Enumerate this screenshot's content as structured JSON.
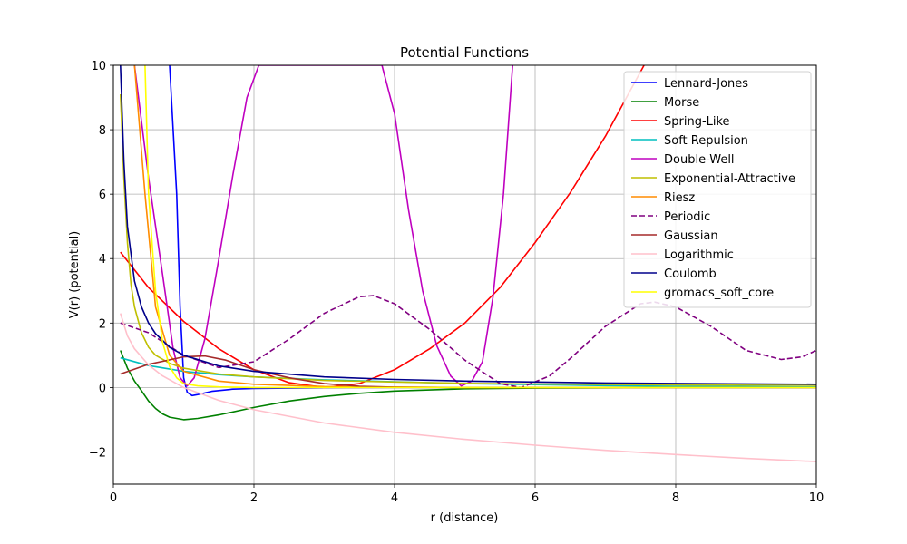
{
  "chart_data": {
    "type": "line",
    "title": "Potential Functions",
    "xlabel": "r (distance)",
    "ylabel": "V(r) (potential)",
    "xlim": [
      0,
      10
    ],
    "ylim": [
      -3,
      10
    ],
    "x_ticks": [
      0,
      2,
      4,
      6,
      8,
      10
    ],
    "y_ticks": [
      -2,
      0,
      2,
      4,
      6,
      8,
      10
    ],
    "x_tick_labels": [
      "0",
      "2",
      "4",
      "6",
      "8",
      "10"
    ],
    "y_tick_labels": [
      "−2",
      "0",
      "2",
      "4",
      "6",
      "8",
      "10"
    ],
    "grid": true,
    "legend_position": "top-right",
    "series": [
      {
        "name": "Lennard-Jones",
        "color": "#0000ff",
        "dash": false,
        "points": [
          [
            0.8,
            10
          ],
          [
            0.9,
            6
          ],
          [
            0.95,
            2.5
          ],
          [
            1.0,
            0.3
          ],
          [
            1.05,
            -0.15
          ],
          [
            1.12,
            -0.25
          ],
          [
            1.2,
            -0.22
          ],
          [
            1.4,
            -0.12
          ],
          [
            1.7,
            -0.05
          ],
          [
            2,
            -0.03
          ],
          [
            3,
            -0.01
          ],
          [
            4,
            0
          ],
          [
            10,
            0
          ]
        ]
      },
      {
        "name": "Morse",
        "color": "#008000",
        "dash": false,
        "points": [
          [
            0.1,
            1.15
          ],
          [
            0.2,
            0.6
          ],
          [
            0.3,
            0.2
          ],
          [
            0.4,
            -0.1
          ],
          [
            0.5,
            -0.42
          ],
          [
            0.6,
            -0.65
          ],
          [
            0.7,
            -0.82
          ],
          [
            0.8,
            -0.92
          ],
          [
            1.0,
            -1.0
          ],
          [
            1.2,
            -0.96
          ],
          [
            1.5,
            -0.85
          ],
          [
            2,
            -0.62
          ],
          [
            2.5,
            -0.42
          ],
          [
            3,
            -0.28
          ],
          [
            3.5,
            -0.18
          ],
          [
            4,
            -0.11
          ],
          [
            5,
            -0.04
          ],
          [
            6,
            -0.02
          ],
          [
            8,
            0
          ],
          [
            10,
            0
          ]
        ]
      },
      {
        "name": "Spring-Like",
        "color": "#ff0000",
        "dash": false,
        "points": [
          [
            0.1,
            4.2
          ],
          [
            0.5,
            3.1
          ],
          [
            1.0,
            2.05
          ],
          [
            1.5,
            1.2
          ],
          [
            2,
            0.55
          ],
          [
            2.5,
            0.15
          ],
          [
            3,
            0.0
          ],
          [
            3.5,
            0.12
          ],
          [
            4,
            0.55
          ],
          [
            4.5,
            1.2
          ],
          [
            5,
            2.0
          ],
          [
            5.5,
            3.1
          ],
          [
            6,
            4.5
          ],
          [
            6.5,
            6.05
          ],
          [
            7,
            7.8
          ],
          [
            7.35,
            9.2
          ],
          [
            7.55,
            10
          ]
        ]
      },
      {
        "name": "Soft Repulsion",
        "color": "#00bfbf",
        "dash": false,
        "points": [
          [
            0.1,
            0.92
          ],
          [
            0.5,
            0.68
          ],
          [
            1.0,
            0.5
          ],
          [
            1.5,
            0.4
          ],
          [
            2,
            0.33
          ],
          [
            3,
            0.24
          ],
          [
            4,
            0.18
          ],
          [
            5,
            0.12
          ],
          [
            6,
            0.09
          ],
          [
            7,
            0.06
          ],
          [
            8,
            0.04
          ],
          [
            10,
            0.02
          ]
        ]
      },
      {
        "name": "Double-Well",
        "color": "#bf00bf",
        "dash": false,
        "points": [
          [
            0.3,
            10
          ],
          [
            0.5,
            6.5
          ],
          [
            0.7,
            3.5
          ],
          [
            0.85,
            1.2
          ],
          [
            0.95,
            0.3
          ],
          [
            1.05,
            0.05
          ],
          [
            1.15,
            0.3
          ],
          [
            1.3,
            1.5
          ],
          [
            1.5,
            4
          ],
          [
            1.7,
            6.6
          ],
          [
            1.9,
            9
          ],
          [
            2.07,
            10
          ],
          [
            3.82,
            10
          ],
          [
            4.0,
            8.5
          ],
          [
            4.2,
            5.5
          ],
          [
            4.4,
            3.0
          ],
          [
            4.6,
            1.3
          ],
          [
            4.8,
            0.35
          ],
          [
            4.95,
            0.05
          ],
          [
            5.1,
            0.2
          ],
          [
            5.25,
            0.8
          ],
          [
            5.4,
            2.8
          ],
          [
            5.55,
            6
          ],
          [
            5.68,
            10
          ]
        ]
      },
      {
        "name": "Exponential-Attractive",
        "color": "#bfbf00",
        "dash": false,
        "points": [
          [
            0.1,
            9.1
          ],
          [
            0.15,
            6.5
          ],
          [
            0.2,
            4.5
          ],
          [
            0.25,
            3.2
          ],
          [
            0.3,
            2.5
          ],
          [
            0.4,
            1.7
          ],
          [
            0.5,
            1.25
          ],
          [
            0.6,
            1.0
          ],
          [
            0.8,
            0.75
          ],
          [
            1.0,
            0.6
          ],
          [
            1.5,
            0.42
          ],
          [
            2,
            0.33
          ],
          [
            3,
            0.22
          ],
          [
            4,
            0.17
          ],
          [
            5,
            0.13
          ],
          [
            6,
            0.11
          ],
          [
            8,
            0.08
          ],
          [
            10,
            0.07
          ]
        ]
      },
      {
        "name": "Riesz",
        "color": "#ff8c00",
        "dash": false,
        "points": [
          [
            0.3,
            10
          ],
          [
            0.45,
            6
          ],
          [
            0.6,
            2.5
          ],
          [
            0.8,
            1.0
          ],
          [
            1.0,
            0.5
          ],
          [
            1.5,
            0.2
          ],
          [
            2,
            0.1
          ],
          [
            3,
            0.03
          ],
          [
            5,
            0
          ],
          [
            10,
            0
          ]
        ]
      },
      {
        "name": "Periodic",
        "color": "#800080",
        "dash": true,
        "points": [
          [
            0.1,
            2.0
          ],
          [
            0.5,
            1.7
          ],
          [
            1.0,
            1.0
          ],
          [
            1.5,
            0.62
          ],
          [
            2,
            0.8
          ],
          [
            2.5,
            1.5
          ],
          [
            3,
            2.3
          ],
          [
            3.5,
            2.82
          ],
          [
            3.7,
            2.85
          ],
          [
            4,
            2.6
          ],
          [
            4.5,
            1.8
          ],
          [
            5,
            0.85
          ],
          [
            5.5,
            0.12
          ],
          [
            5.8,
            0.0
          ],
          [
            6.2,
            0.35
          ],
          [
            6.5,
            0.9
          ],
          [
            7,
            1.9
          ],
          [
            7.5,
            2.6
          ],
          [
            7.7,
            2.65
          ],
          [
            8,
            2.5
          ],
          [
            8.5,
            1.9
          ],
          [
            9,
            1.15
          ],
          [
            9.5,
            0.87
          ],
          [
            9.8,
            0.95
          ],
          [
            10,
            1.15
          ]
        ]
      },
      {
        "name": "Gaussian",
        "color": "#a52a2a",
        "dash": false,
        "points": [
          [
            0.1,
            0.42
          ],
          [
            0.5,
            0.72
          ],
          [
            1.0,
            0.95
          ],
          [
            1.3,
            0.98
          ],
          [
            1.6,
            0.85
          ],
          [
            2,
            0.55
          ],
          [
            2.5,
            0.3
          ],
          [
            3,
            0.12
          ],
          [
            3.5,
            0.04
          ],
          [
            4,
            0.01
          ],
          [
            5,
            0
          ],
          [
            10,
            0
          ]
        ]
      },
      {
        "name": "Logarithmic",
        "color": "#ffc0cb",
        "dash": false,
        "points": [
          [
            0.1,
            2.3
          ],
          [
            0.2,
            1.6
          ],
          [
            0.3,
            1.2
          ],
          [
            0.5,
            0.7
          ],
          [
            0.7,
            0.36
          ],
          [
            1.0,
            0.0
          ],
          [
            1.5,
            -0.4
          ],
          [
            2,
            -0.69
          ],
          [
            3,
            -1.1
          ],
          [
            4,
            -1.39
          ],
          [
            5,
            -1.61
          ],
          [
            6,
            -1.79
          ],
          [
            7,
            -1.95
          ],
          [
            8,
            -2.08
          ],
          [
            9,
            -2.2
          ],
          [
            10,
            -2.3
          ]
        ]
      },
      {
        "name": "Coulomb",
        "color": "#00008b",
        "dash": false,
        "points": [
          [
            0.1,
            10
          ],
          [
            0.15,
            7
          ],
          [
            0.2,
            5.0
          ],
          [
            0.3,
            3.3
          ],
          [
            0.4,
            2.5
          ],
          [
            0.5,
            2.0
          ],
          [
            0.6,
            1.67
          ],
          [
            0.8,
            1.25
          ],
          [
            1.0,
            1.0
          ],
          [
            1.5,
            0.67
          ],
          [
            2,
            0.5
          ],
          [
            3,
            0.33
          ],
          [
            4,
            0.25
          ],
          [
            5,
            0.2
          ],
          [
            6,
            0.17
          ],
          [
            7,
            0.14
          ],
          [
            8,
            0.125
          ],
          [
            10,
            0.1
          ]
        ]
      },
      {
        "name": "gromacs_soft_core",
        "color": "#ffff00",
        "dash": false,
        "points": [
          [
            0.45,
            10
          ],
          [
            0.5,
            6
          ],
          [
            0.6,
            3.0
          ],
          [
            0.7,
            1.4
          ],
          [
            0.8,
            0.65
          ],
          [
            0.9,
            0.3
          ],
          [
            1.0,
            0.12
          ],
          [
            1.2,
            0.05
          ],
          [
            1.5,
            0.02
          ],
          [
            2,
            0
          ],
          [
            10,
            0
          ]
        ]
      }
    ]
  }
}
